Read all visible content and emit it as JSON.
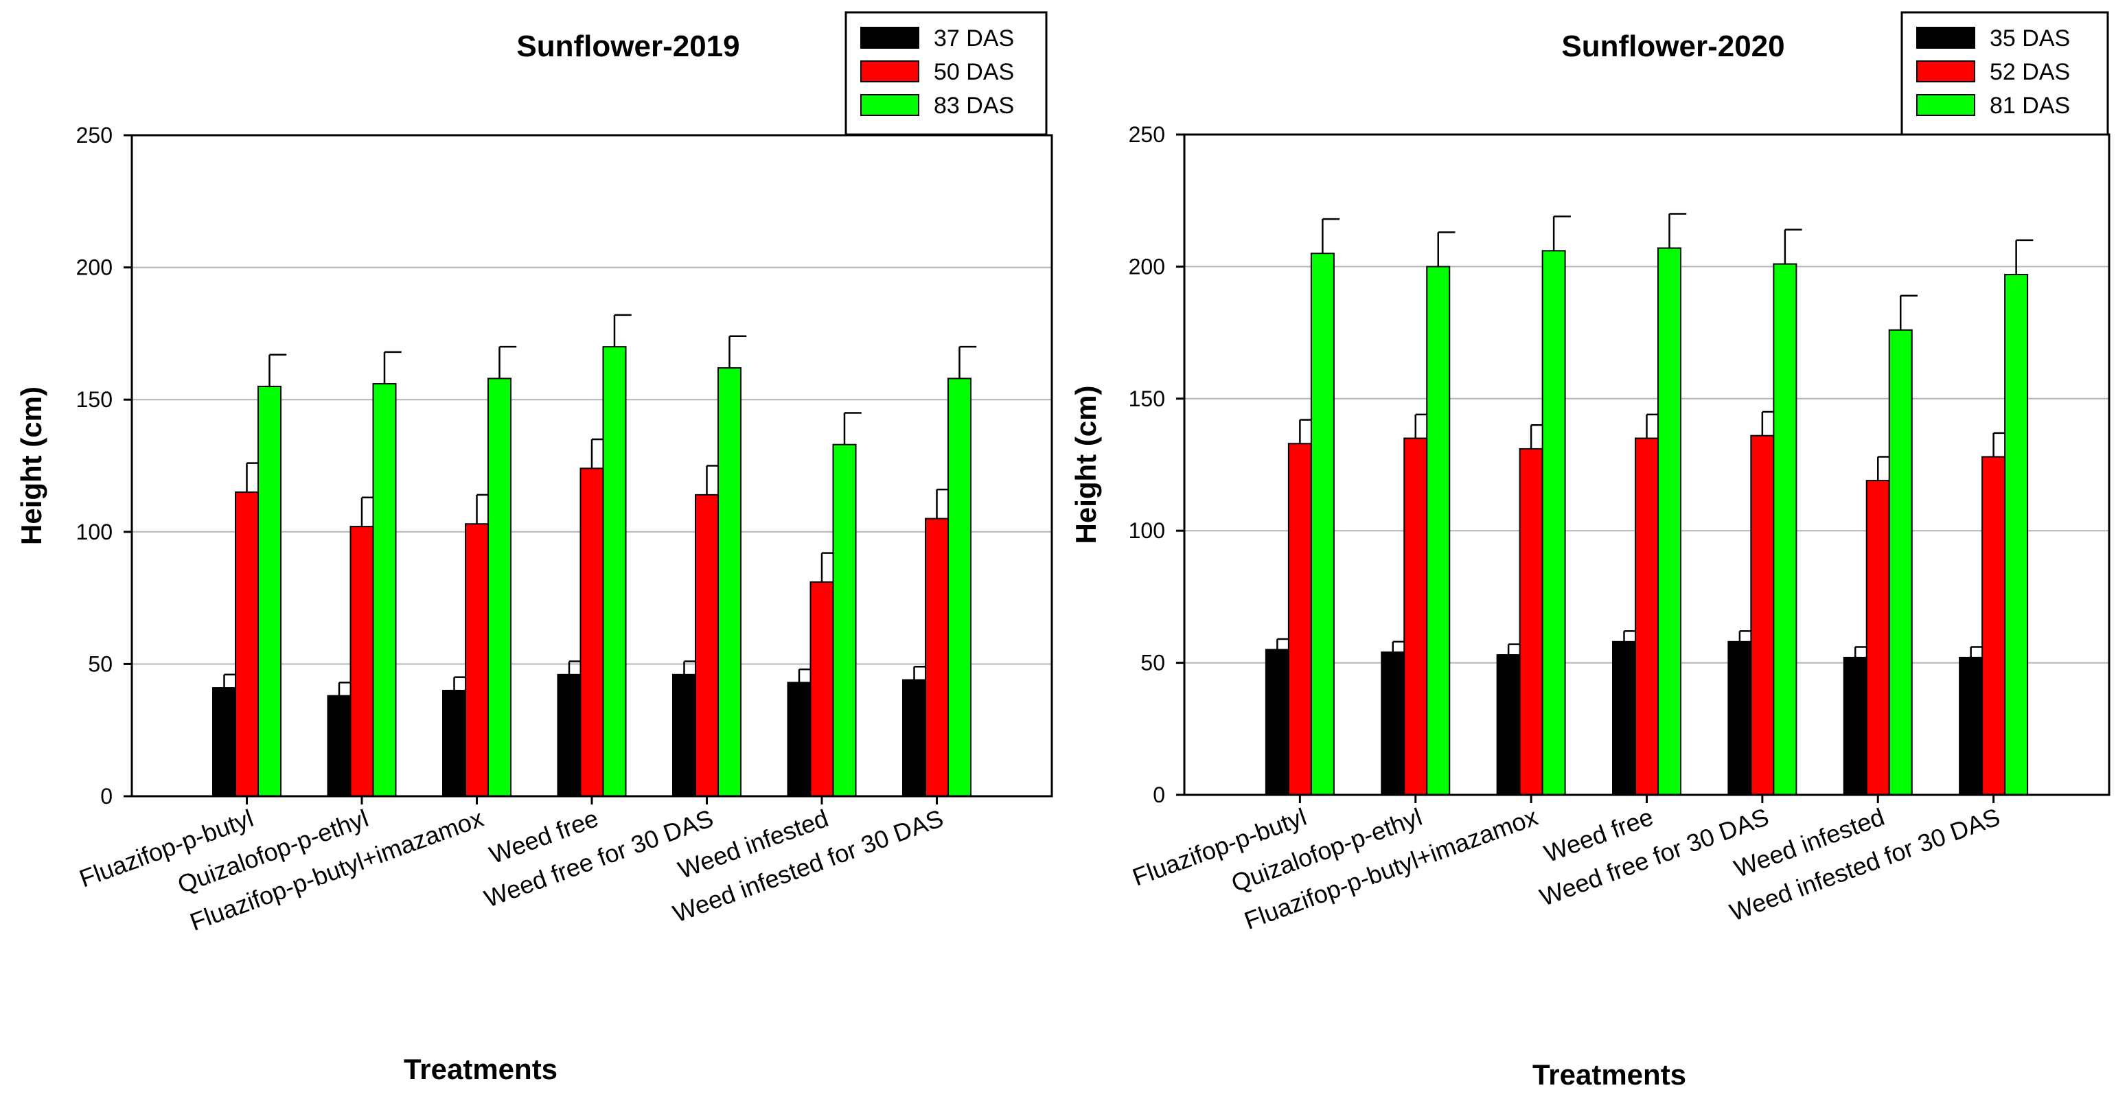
{
  "chart_data": [
    {
      "type": "bar",
      "title": "Sunflower-2019",
      "xlabel": "Treatments",
      "ylabel": "Height (cm)",
      "ylim": [
        0,
        250
      ],
      "yticks": [
        0,
        50,
        100,
        150,
        200,
        250
      ],
      "grid": true,
      "legend_position": "top-right",
      "categories": [
        "Fluazifop-p-butyl",
        "Quizalofop-p-ethyl",
        "Fluazifop-p-butyl+imazamox",
        "Weed free",
        "Weed free for 30 DAS",
        "Weed infested",
        "Weed infested for 30 DAS"
      ],
      "series": [
        {
          "name": "37 DAS",
          "color": "#000000",
          "values": [
            41,
            38,
            40,
            46,
            46,
            43,
            44
          ],
          "errors": [
            5,
            5,
            5,
            5,
            5,
            5,
            5
          ]
        },
        {
          "name": "50 DAS",
          "color": "#ff0000",
          "values": [
            115,
            102,
            103,
            124,
            114,
            81,
            105
          ],
          "errors": [
            11,
            11,
            11,
            11,
            11,
            11,
            11
          ]
        },
        {
          "name": "83 DAS",
          "color": "#00ff00",
          "values": [
            155,
            156,
            158,
            170,
            162,
            133,
            158
          ],
          "errors": [
            12,
            12,
            12,
            12,
            12,
            12,
            12
          ]
        }
      ]
    },
    {
      "type": "bar",
      "title": "Sunflower-2020",
      "xlabel": "Treatments",
      "ylabel": "Height (cm)",
      "ylim": [
        0,
        250
      ],
      "yticks": [
        0,
        50,
        100,
        150,
        200,
        250
      ],
      "grid": true,
      "legend_position": "top-right",
      "categories": [
        "Fluazifop-p-butyl",
        "Quizalofop-p-ethyl",
        "Fluazifop-p-butyl+imazamox",
        "Weed free",
        "Weed free for 30 DAS",
        "Weed infested",
        "Weed infested for 30 DAS"
      ],
      "series": [
        {
          "name": "35 DAS",
          "color": "#000000",
          "values": [
            55,
            54,
            53,
            58,
            58,
            52,
            52
          ],
          "errors": [
            4,
            4,
            4,
            4,
            4,
            4,
            4
          ]
        },
        {
          "name": "52 DAS",
          "color": "#ff0000",
          "values": [
            133,
            135,
            131,
            135,
            136,
            119,
            128
          ],
          "errors": [
            9,
            9,
            9,
            9,
            9,
            9,
            9
          ]
        },
        {
          "name": "81 DAS",
          "color": "#00ff00",
          "values": [
            205,
            200,
            206,
            207,
            201,
            176,
            197
          ],
          "errors": [
            13,
            13,
            13,
            13,
            13,
            13,
            13
          ]
        }
      ]
    }
  ]
}
